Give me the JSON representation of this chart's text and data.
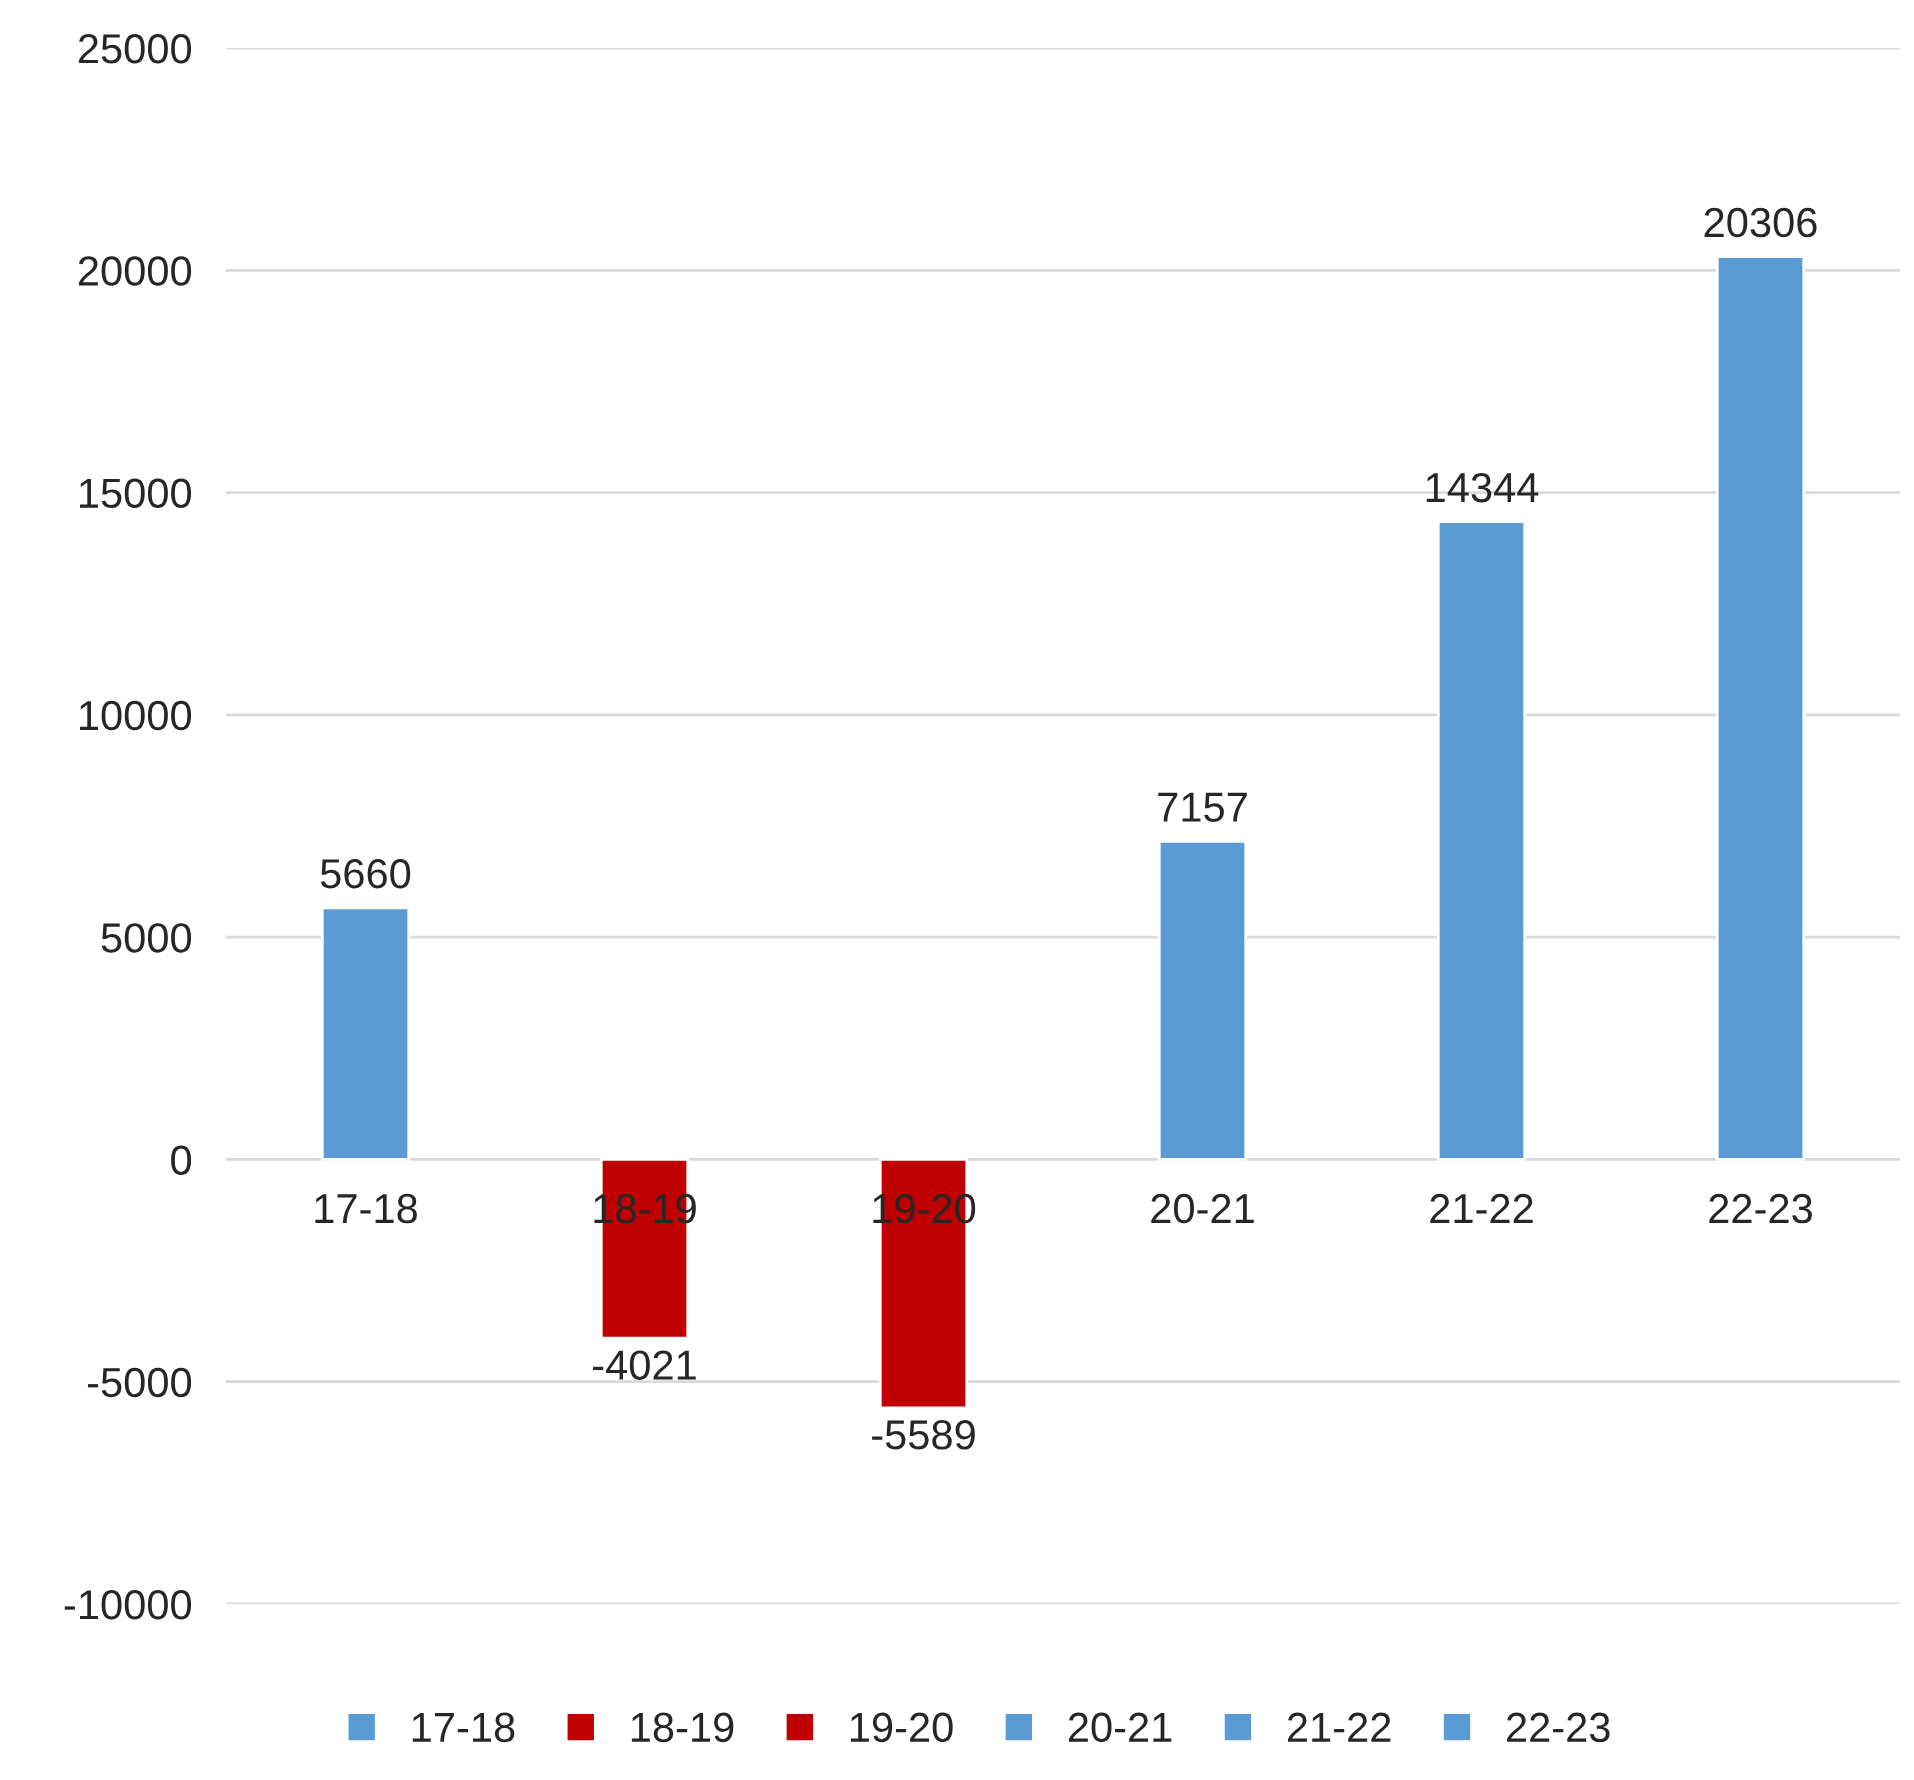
{
  "chart_data": {
    "type": "bar",
    "categories": [
      "17-18",
      "18-19",
      "19-20",
      "20-21",
      "21-22",
      "22-23"
    ],
    "series": [
      {
        "name": "17-18",
        "color": "#5b9bd5",
        "values": [
          5660,
          null,
          null,
          null,
          null,
          null
        ]
      },
      {
        "name": "18-19",
        "color": "#c00000",
        "values": [
          null,
          -4021,
          null,
          null,
          null,
          null
        ]
      },
      {
        "name": "19-20",
        "color": "#c00000",
        "values": [
          null,
          null,
          -5589,
          null,
          null,
          null
        ]
      },
      {
        "name": "20-21",
        "color": "#5b9bd5",
        "values": [
          null,
          null,
          null,
          7157,
          null,
          null
        ]
      },
      {
        "name": "21-22",
        "color": "#5b9bd5",
        "values": [
          null,
          null,
          null,
          null,
          14344,
          null
        ]
      },
      {
        "name": "22-23",
        "color": "#5b9bd5",
        "values": [
          null,
          null,
          null,
          null,
          null,
          20306
        ]
      }
    ],
    "ylim": [
      -10000,
      25000
    ],
    "yticks": [
      -10000,
      -5000,
      0,
      5000,
      10000,
      15000,
      20000,
      25000
    ],
    "grid": "y",
    "legend": "bottom",
    "data_labels": true
  }
}
